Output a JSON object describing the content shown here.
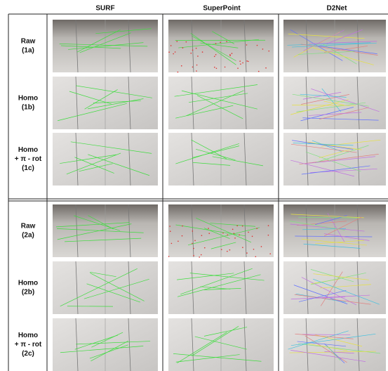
{
  "header": {
    "columns": [
      "SURF",
      "SuperPoint",
      "D2Net"
    ]
  },
  "rows": [
    {
      "label": [
        "Raw",
        "(1a)"
      ]
    },
    {
      "label": [
        "Homo",
        "(1b)"
      ]
    },
    {
      "label": [
        "Homo",
        "+ π - rot",
        "(1c)"
      ]
    },
    {
      "label": [
        "Raw",
        "(2a)"
      ]
    },
    {
      "label": [
        "Homo",
        "(2b)"
      ]
    },
    {
      "label": [
        "Homo",
        "+ π - rot",
        "(2c)"
      ]
    }
  ]
}
